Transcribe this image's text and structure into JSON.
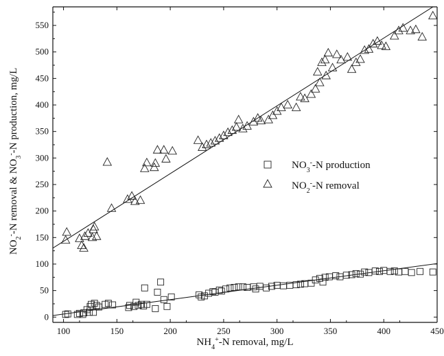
{
  "chart_data": {
    "type": "scatter",
    "title": "",
    "xlabel": "NH4+-N removal, mg/L",
    "ylabel": "NO2--N removal & NO3--N production, mg/L",
    "xlim": [
      90,
      450
    ],
    "ylim": [
      -10,
      585
    ],
    "xticks": [
      100,
      150,
      200,
      250,
      300,
      350,
      400,
      450
    ],
    "yticks": [
      0,
      50,
      100,
      150,
      200,
      250,
      300,
      350,
      400,
      450,
      500,
      550
    ],
    "grid": false,
    "legend_position": "right-middle",
    "series": [
      {
        "name": "NO3--N production",
        "marker": "square",
        "trendline": {
          "x": [
            90,
            450
          ],
          "y": [
            3,
            101
          ]
        },
        "points": [
          [
            102,
            5
          ],
          [
            104,
            6
          ],
          [
            113,
            5
          ],
          [
            115,
            7
          ],
          [
            118,
            5
          ],
          [
            119,
            8
          ],
          [
            122,
            14
          ],
          [
            124,
            9
          ],
          [
            125,
            20
          ],
          [
            126,
            24
          ],
          [
            128,
            9
          ],
          [
            129,
            26
          ],
          [
            131,
            22
          ],
          [
            133,
            19
          ],
          [
            139,
            24
          ],
          [
            142,
            26
          ],
          [
            146,
            23
          ],
          [
            161,
            18
          ],
          [
            162,
            22
          ],
          [
            166,
            20
          ],
          [
            168,
            28
          ],
          [
            170,
            22
          ],
          [
            173,
            24
          ],
          [
            175,
            21
          ],
          [
            176,
            55
          ],
          [
            178,
            24
          ],
          [
            186,
            16
          ],
          [
            188,
            47
          ],
          [
            191,
            66
          ],
          [
            194,
            33
          ],
          [
            197,
            20
          ],
          [
            201,
            38
          ],
          [
            227,
            42
          ],
          [
            229,
            38
          ],
          [
            232,
            40
          ],
          [
            236,
            45
          ],
          [
            240,
            48
          ],
          [
            242,
            47
          ],
          [
            246,
            51
          ],
          [
            248,
            49
          ],
          [
            252,
            53
          ],
          [
            256,
            55
          ],
          [
            260,
            56
          ],
          [
            264,
            57
          ],
          [
            268,
            57
          ],
          [
            272,
            56
          ],
          [
            278,
            57
          ],
          [
            280,
            53
          ],
          [
            284,
            58
          ],
          [
            290,
            55
          ],
          [
            295,
            58
          ],
          [
            300,
            60
          ],
          [
            306,
            59
          ],
          [
            312,
            60
          ],
          [
            318,
            61
          ],
          [
            322,
            62
          ],
          [
            326,
            63
          ],
          [
            332,
            64
          ],
          [
            336,
            70
          ],
          [
            340,
            73
          ],
          [
            343,
            66
          ],
          [
            345,
            75
          ],
          [
            349,
            76
          ],
          [
            355,
            78
          ],
          [
            359,
            76
          ],
          [
            365,
            79
          ],
          [
            370,
            80
          ],
          [
            374,
            82
          ],
          [
            378,
            81
          ],
          [
            382,
            85
          ],
          [
            386,
            84
          ],
          [
            392,
            87
          ],
          [
            396,
            86
          ],
          [
            400,
            88
          ],
          [
            406,
            86
          ],
          [
            410,
            87
          ],
          [
            414,
            85
          ],
          [
            420,
            86
          ],
          [
            426,
            84
          ],
          [
            434,
            86
          ],
          [
            446,
            85
          ]
        ]
      },
      {
        "name": "NO2--N removal",
        "marker": "triangle",
        "trendline": {
          "x": [
            90,
            450
          ],
          "y": [
            130,
            590
          ]
        },
        "points": [
          [
            102,
            145
          ],
          [
            103,
            160
          ],
          [
            115,
            148
          ],
          [
            117,
            135
          ],
          [
            119,
            130
          ],
          [
            120,
            152
          ],
          [
            123,
            158
          ],
          [
            127,
            150
          ],
          [
            128,
            165
          ],
          [
            129,
            170
          ],
          [
            131,
            152
          ],
          [
            141,
            292
          ],
          [
            145,
            205
          ],
          [
            160,
            222
          ],
          [
            164,
            228
          ],
          [
            167,
            218
          ],
          [
            172,
            220
          ],
          [
            176,
            280
          ],
          [
            178,
            291
          ],
          [
            185,
            282
          ],
          [
            186,
            290
          ],
          [
            188,
            315
          ],
          [
            194,
            315
          ],
          [
            196,
            298
          ],
          [
            202,
            313
          ],
          [
            226,
            333
          ],
          [
            230,
            320
          ],
          [
            234,
            325
          ],
          [
            238,
            328
          ],
          [
            242,
            332
          ],
          [
            246,
            337
          ],
          [
            250,
            342
          ],
          [
            254,
            348
          ],
          [
            258,
            352
          ],
          [
            262,
            358
          ],
          [
            264,
            372
          ],
          [
            268,
            355
          ],
          [
            272,
            360
          ],
          [
            278,
            368
          ],
          [
            282,
            375
          ],
          [
            285,
            370
          ],
          [
            292,
            372
          ],
          [
            296,
            380
          ],
          [
            300,
            388
          ],
          [
            304,
            395
          ],
          [
            310,
            400
          ],
          [
            318,
            395
          ],
          [
            322,
            415
          ],
          [
            326,
            412
          ],
          [
            332,
            420
          ],
          [
            336,
            430
          ],
          [
            338,
            462
          ],
          [
            340,
            442
          ],
          [
            342,
            480
          ],
          [
            345,
            485
          ],
          [
            346,
            455
          ],
          [
            348,
            498
          ],
          [
            352,
            470
          ],
          [
            356,
            495
          ],
          [
            360,
            485
          ],
          [
            366,
            490
          ],
          [
            370,
            467
          ],
          [
            374,
            480
          ],
          [
            378,
            486
          ],
          [
            382,
            503
          ],
          [
            386,
            505
          ],
          [
            390,
            515
          ],
          [
            394,
            520
          ],
          [
            398,
            512
          ],
          [
            402,
            510
          ],
          [
            410,
            530
          ],
          [
            414,
            540
          ],
          [
            418,
            545
          ],
          [
            425,
            540
          ],
          [
            430,
            542
          ],
          [
            436,
            528
          ],
          [
            446,
            568
          ]
        ]
      }
    ]
  }
}
